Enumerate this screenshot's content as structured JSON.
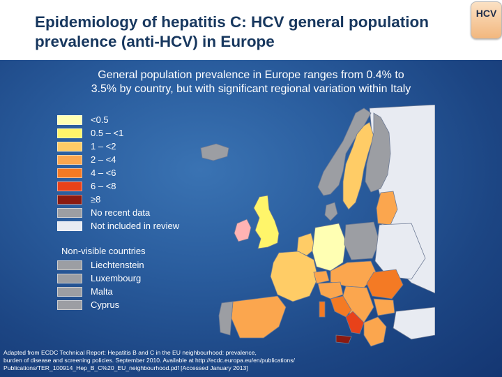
{
  "title": {
    "line1": "Epidemiology of hepatitis C: HCV general population",
    "line2": "prevalence (anti-HCV) in Europe"
  },
  "badge": "HCV",
  "subtitle": {
    "line1": "General population prevalence in Europe ranges from 0.4% to",
    "line2": "3.5% by country, but with significant regional variation within Italy"
  },
  "legend": [
    {
      "label": "<0.5",
      "color": "#ffffb3"
    },
    {
      "label": "0.5 – <1",
      "color": "#fff56a"
    },
    {
      "label": "1 – <2",
      "color": "#ffcc66"
    },
    {
      "label": "2 – <4",
      "color": "#fba64e"
    },
    {
      "label": "4 – <6",
      "color": "#f47a24"
    },
    {
      "label": "6 – <8",
      "color": "#e8421a"
    },
    {
      "label": "≥8",
      "color": "#8b1a10"
    },
    {
      "label": "No recent data",
      "color": "#9c9ea3"
    },
    {
      "label": "Not included in review",
      "color": "#e8ebf2"
    }
  ],
  "non_visible": {
    "title": "Non-visible countries",
    "countries": [
      "Liechtenstein",
      "Luxembourg",
      "Malta",
      "Cyprus"
    ],
    "color": "#9c9ea3"
  },
  "source": {
    "line1": "Adapted from ECDC Technical Report: Hepatitis B and C in the EU neighbourhood: prevalence,",
    "line2": "burden of disease and screening policies. September 2010. Available at http://ecdc.europa.eu/en/publications/",
    "line3": "Publications/TER_100914_Hep_B_C%20_EU_neighbourhood.pdf [Accessed January 2013]"
  }
}
